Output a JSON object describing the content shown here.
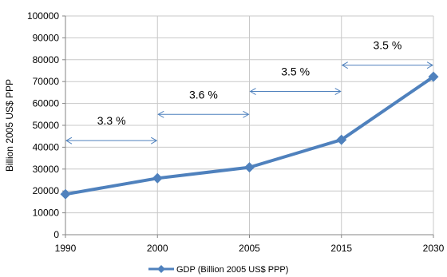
{
  "chart_data": {
    "type": "line",
    "x": [
      "1990",
      "2000",
      "2005",
      "2015",
      "2030"
    ],
    "series": [
      {
        "name": "GDP (Billion 2005 US$ PPP)",
        "values": [
          18500,
          25800,
          30800,
          43400,
          72200
        ],
        "color": "#4F81BD"
      }
    ],
    "ylabel": "Billion 2005 US$ PPP",
    "xlabel": "",
    "ylim": [
      0,
      100000
    ],
    "yticks": [
      "0",
      "10000",
      "20000",
      "30000",
      "40000",
      "50000",
      "60000",
      "70000",
      "80000",
      "90000",
      "100000"
    ],
    "grid": "horizontal",
    "legend": "bottom",
    "annotations": [
      {
        "label": "3.3 %",
        "from": "1990",
        "to": "2000",
        "y": 43000
      },
      {
        "label": "3.6 %",
        "from": "2000",
        "to": "2005",
        "y": 55000
      },
      {
        "label": "3.5 %",
        "from": "2005",
        "to": "2015",
        "y": 65500
      },
      {
        "label": "3.5 %",
        "from": "2015",
        "to": "2030",
        "y": 77500
      }
    ],
    "annotation_color": "#4F81BD"
  }
}
